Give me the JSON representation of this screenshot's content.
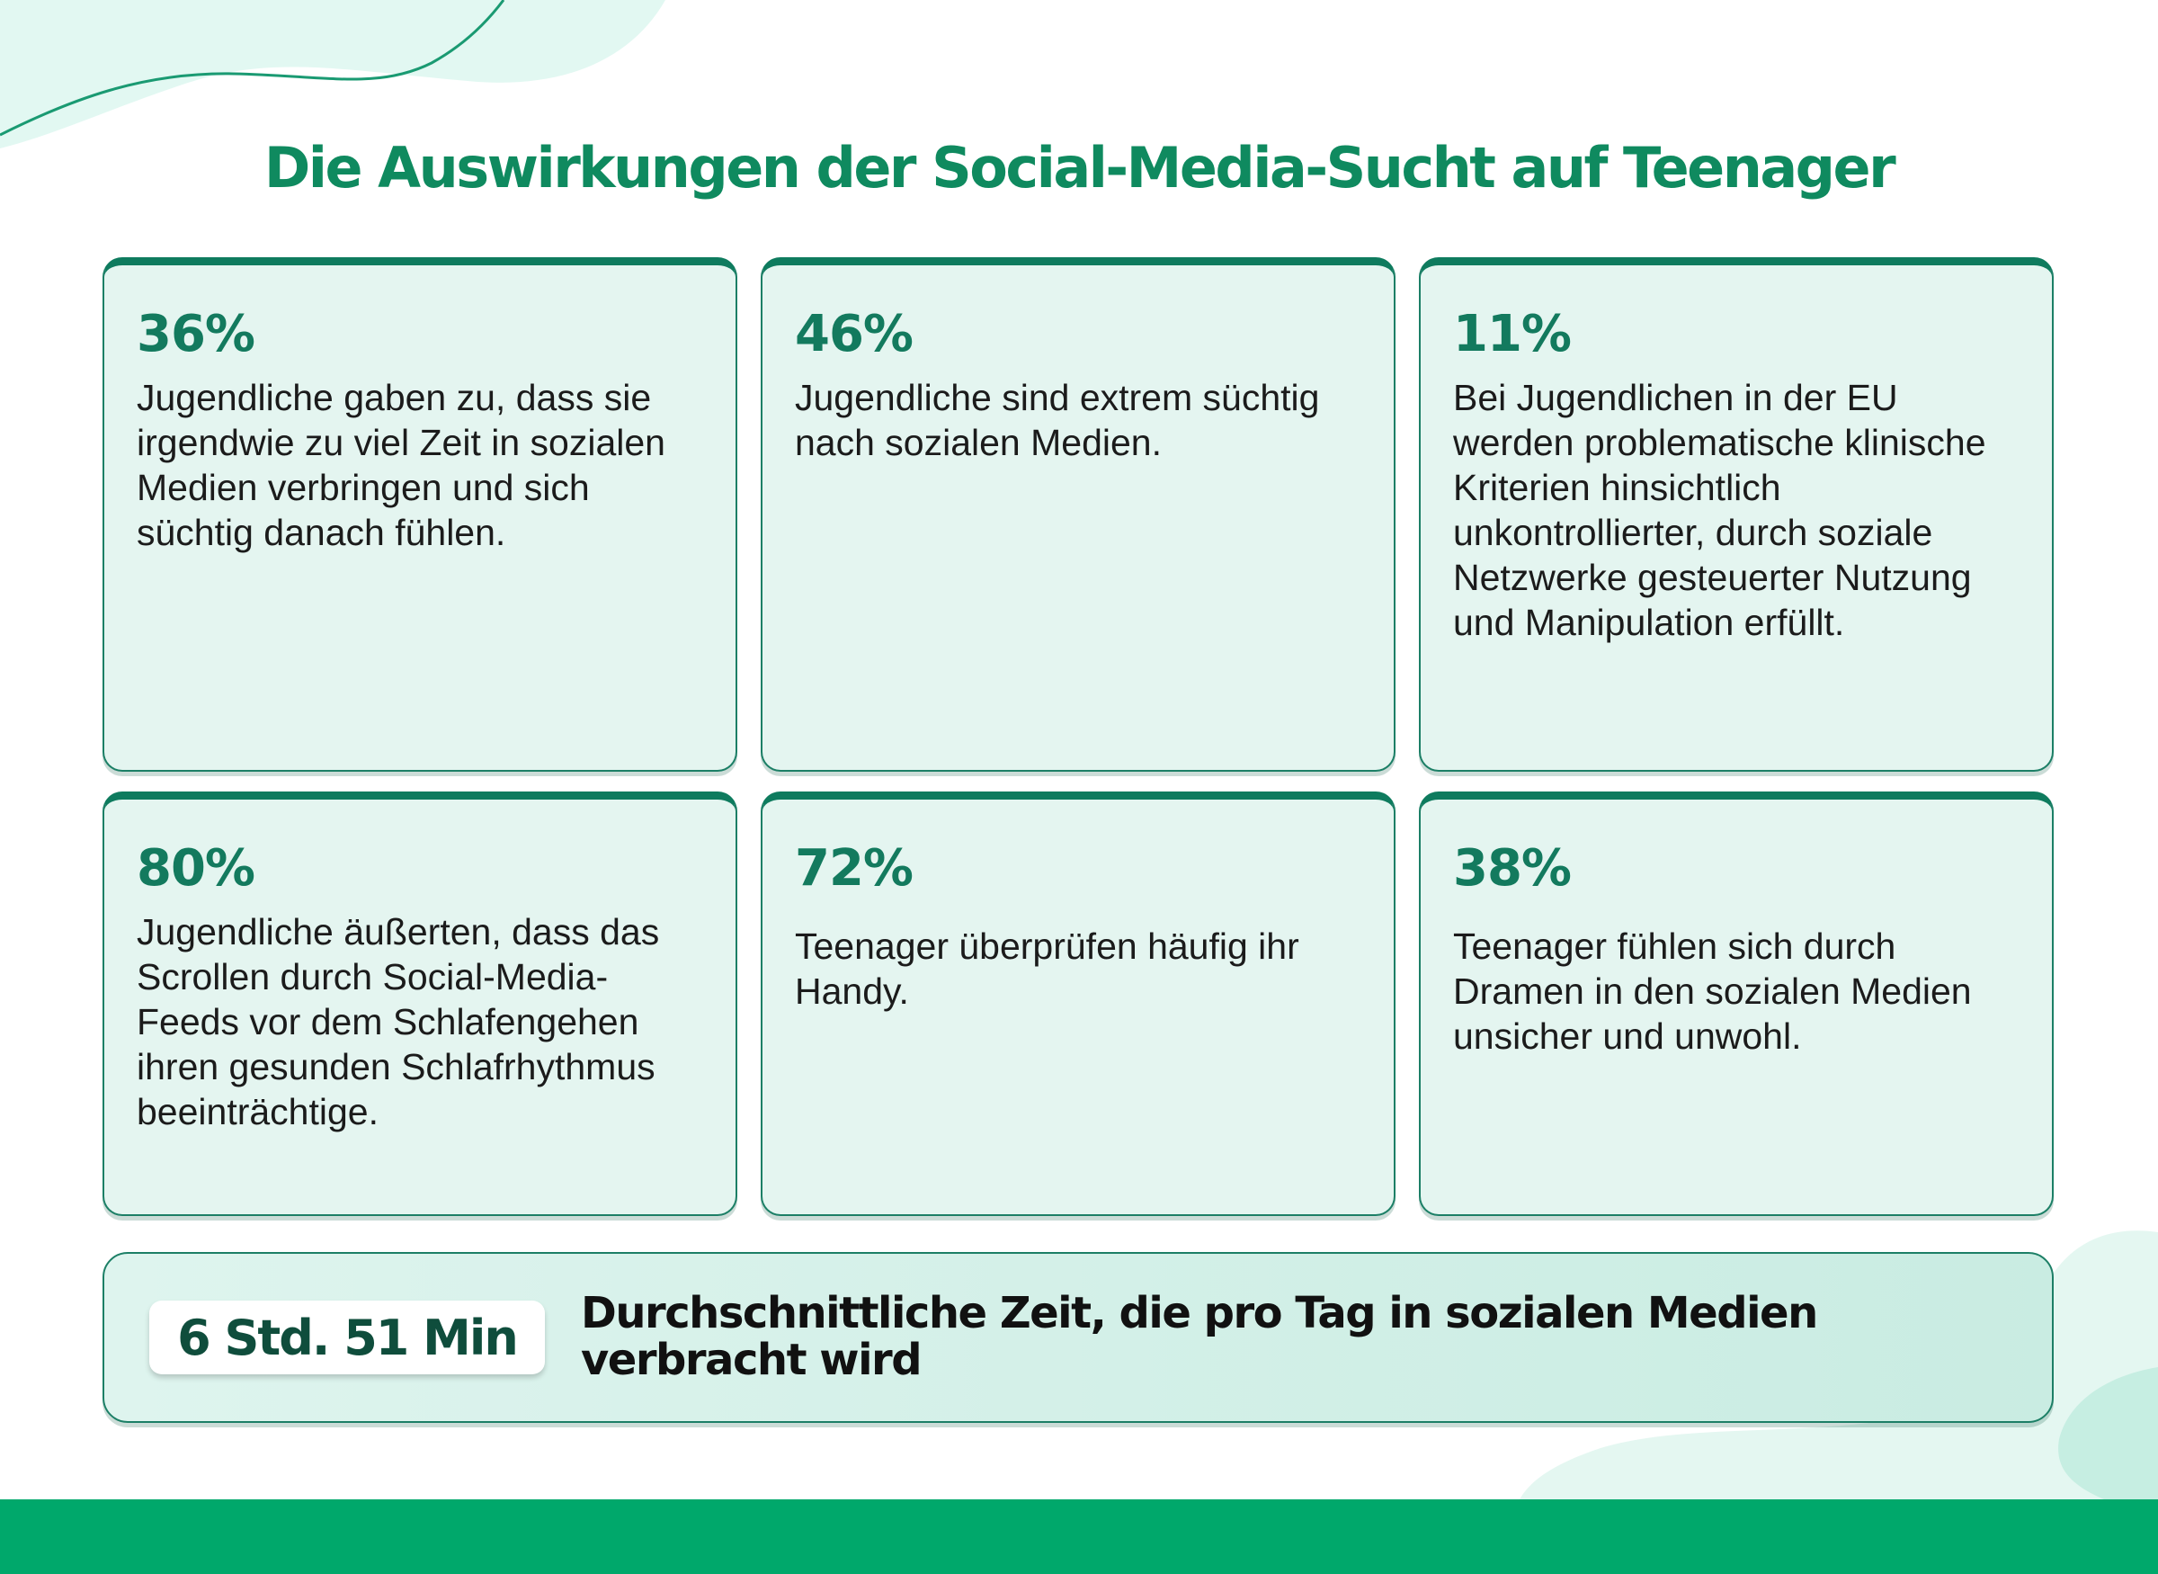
{
  "header": {
    "title": "Die Auswirkungen der Social-Media-Sucht auf Teenager"
  },
  "cards": [
    {
      "stat": "36%",
      "description": "Jugendliche gaben zu, dass sie irgendwie zu viel Zeit in sozialen Medien verbringen und sich süchtig danach fühlen."
    },
    {
      "stat": "46%",
      "description": "Jugendliche sind extrem süchtig nach sozialen Medien."
    },
    {
      "stat": "11%",
      "description": "Bei Jugendlichen in der EU werden problematische klinische Kriterien hinsichtlich unkontrollierter, durch soziale Netzwerke gesteuerter Nutzung und Manipulation erfüllt."
    },
    {
      "stat": "80%",
      "description": "Jugendliche äußerten, dass das Scrollen durch Social-Media-Feeds vor dem Schlafengehen ihren gesunden Schlafrhythmus beeinträchtige."
    },
    {
      "stat": "72%",
      "description": "Teenager überprüfen häufig ihr Handy."
    },
    {
      "stat": "38%",
      "description": "Teenager fühlen sich durch Dramen in den sozialen Medien unsicher und unwohl."
    }
  ],
  "summary": {
    "value": "6 Std. 51 Min",
    "text": "Durchschnittliche Zeit, die pro Tag in sozialen Medien verbracht wird"
  },
  "colors": {
    "accent": "#0f8a5f",
    "card_background": "#e4f5f0",
    "card_border": "#0e7b5e",
    "footer": "#00a86b"
  }
}
